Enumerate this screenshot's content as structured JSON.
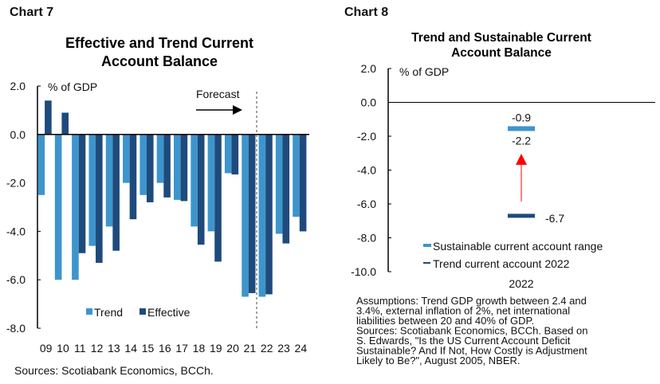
{
  "colors": {
    "trend": "#3d95cc",
    "effective": "#1f4a7c",
    "arrow": "#ff0000",
    "range_label": "#3d95cc"
  },
  "chart_data": [
    {
      "type": "bar",
      "header": "Chart 7",
      "title_line1": "Effective and Trend Current",
      "title_line2": "Account Balance",
      "ylabel": "% of GDP",
      "ylim": [
        -8,
        2
      ],
      "yticks": [
        "2.0",
        "0.0",
        "-2.0",
        "-4.0",
        "-6.0",
        "-8.0"
      ],
      "categories": [
        "09",
        "10",
        "11",
        "12",
        "13",
        "14",
        "15",
        "16",
        "17",
        "18",
        "19",
        "20",
        "21",
        "22",
        "23",
        "24"
      ],
      "series": [
        {
          "name": "Trend",
          "values": [
            -2.5,
            -6.0,
            -6.0,
            -4.6,
            -3.8,
            -2.0,
            -2.5,
            -2.0,
            -2.7,
            -3.8,
            -4.0,
            -1.6,
            -6.7,
            -6.7,
            -4.1,
            -3.4
          ]
        },
        {
          "name": "Effective",
          "values": [
            1.4,
            0.9,
            -4.9,
            -5.3,
            -4.8,
            -3.5,
            -2.8,
            -2.6,
            -2.75,
            -4.55,
            -5.25,
            -1.65,
            -6.55,
            -6.6,
            -4.5,
            -4.0
          ]
        }
      ],
      "annotation": "Forecast",
      "forecast_starts_after": "21",
      "legend": "bottom-left",
      "source": "Sources: Scotiabank Economics, BCCh."
    },
    {
      "type": "range",
      "header": "Chart 8",
      "title_line1": "Trend and Sustainable Current",
      "title_line2": "Account Balance",
      "ylabel": "% of GDP",
      "ylim": [
        -10,
        2
      ],
      "yticks": [
        "2.0",
        "0.0",
        "-2.0",
        "-4.0",
        "-6.0",
        "-8.0",
        "-10.0"
      ],
      "category": "2022",
      "sustainable_range": {
        "name": "Sustainable current account range",
        "high": -0.9,
        "low": -2.2,
        "high_label": "-0.9",
        "low_label": "-2.2"
      },
      "trend": {
        "name": "Trend current account 2022",
        "value": -6.7,
        "label": "-6.7"
      },
      "legend": "bottom",
      "notes": [
        "Assumptions: Trend GDP growth between 2.4 and",
        "3.4%, external inflation of 2%, net international",
        "liabilities between 20 and 40% of GDP.",
        "Sources: Scotiabank Economics, BCCh. Based on",
        "S. Edwards, \"Is the US Current Account Deficit",
        "Sustainable? And If Not, How Costly is Adjustment",
        "Likely to Be?\", August 2005, NBER."
      ]
    }
  ]
}
